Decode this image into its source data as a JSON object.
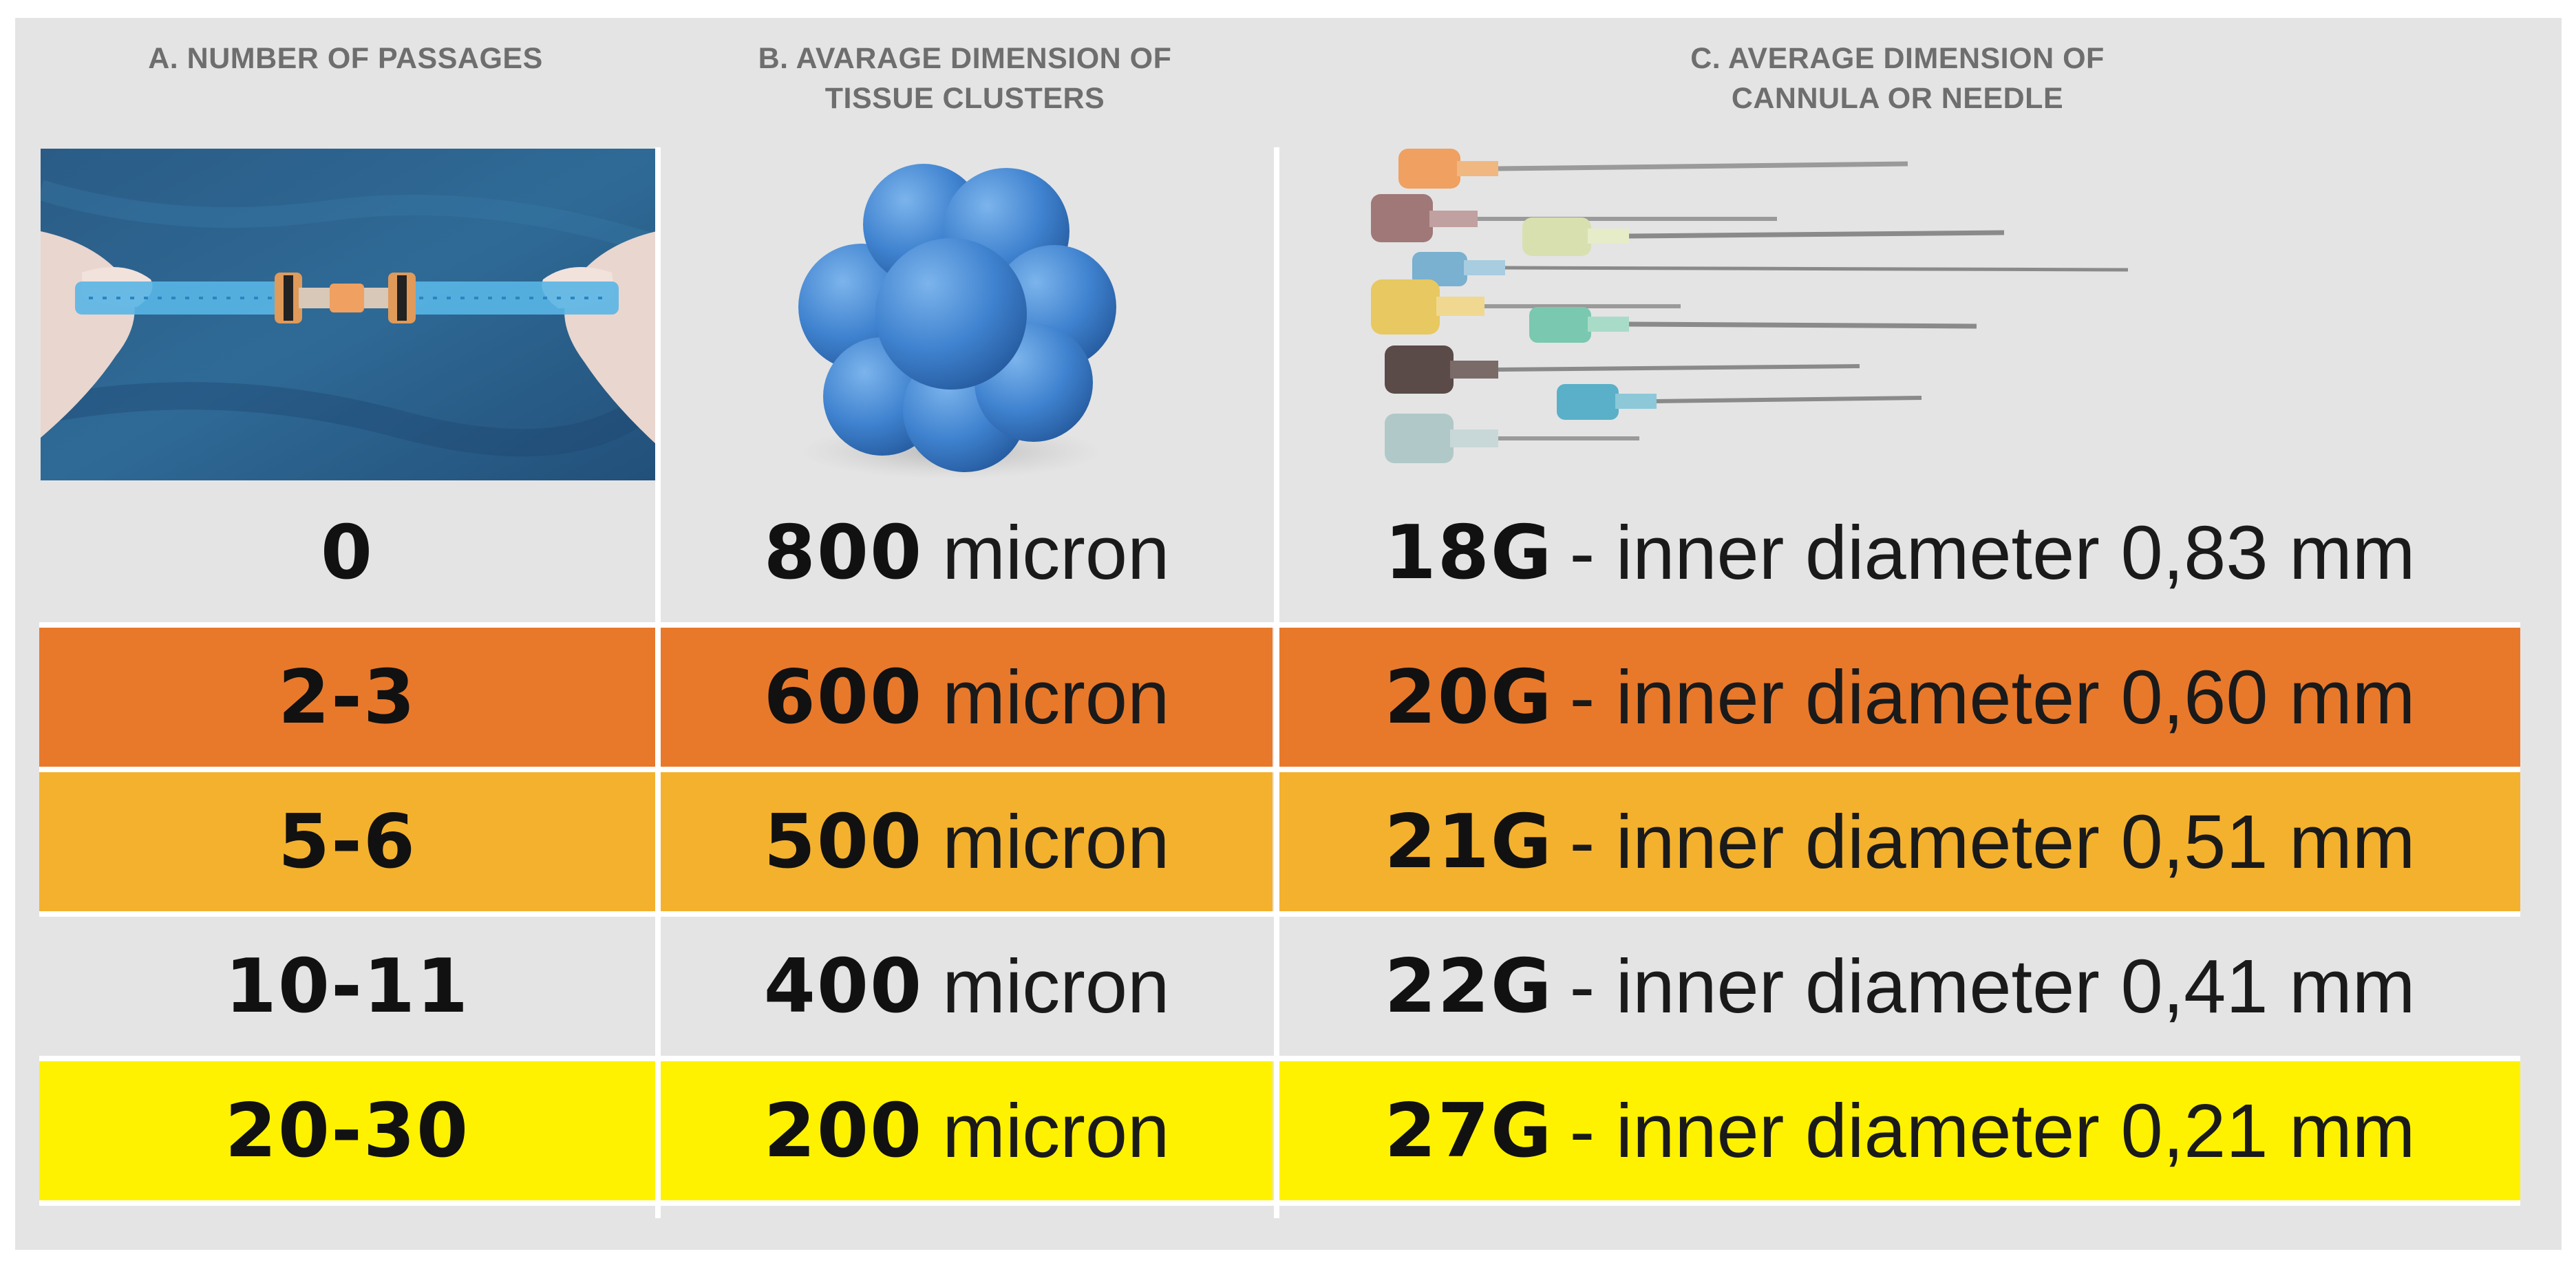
{
  "headers": {
    "a": "A. NUMBER OF PASSAGES",
    "b": "B. AVARAGE DIMENSION OF\nTISSUE CLUSTERS",
    "c": "C. AVERAGE DIMENSION OF\nCANNULA OR NEEDLE"
  },
  "images": {
    "a": "syringes-connected-photo",
    "b": "tissue-cluster-3d",
    "c": "cannula-needles-photo"
  },
  "rows": [
    {
      "passages": "0",
      "size_value": "800",
      "size_unit": "micron",
      "gauge": "18G",
      "gauge_desc": "- inner diameter 0,83 mm",
      "bg": "#e4e4e4"
    },
    {
      "passages": "2-3",
      "size_value": "600",
      "size_unit": "micron",
      "gauge": "20G",
      "gauge_desc": "- inner diameter 0,60 mm",
      "bg": "#e8792b"
    },
    {
      "passages": "5-6",
      "size_value": "500",
      "size_unit": "micron",
      "gauge": "21G",
      "gauge_desc": "- inner diameter 0,51 mm",
      "bg": "#f4b12e"
    },
    {
      "passages": "10-11",
      "size_value": "400",
      "size_unit": "micron",
      "gauge": "22G",
      "gauge_desc": "- inner diameter 0,41 mm",
      "bg": "#e4e4e4"
    },
    {
      "passages": "20-30",
      "size_value": "200",
      "size_unit": "micron",
      "gauge": "27G",
      "gauge_desc": "- inner diameter 0,21 mm",
      "bg": "#fff200"
    }
  ],
  "needle_colors": [
    "#f0a060",
    "#a07878",
    "#d8e0b0",
    "#7ab0d0",
    "#e8c860",
    "#7ac8b0",
    "#5a4a48",
    "#5ab0c8",
    "#b0c8c8"
  ]
}
